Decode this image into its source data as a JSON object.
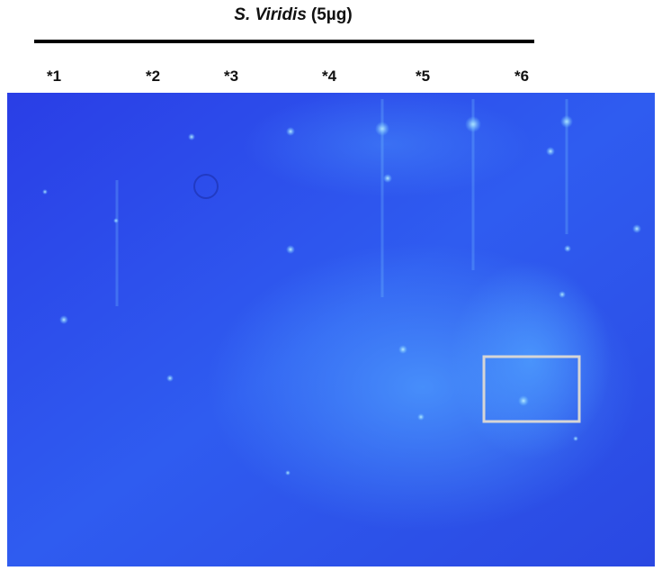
{
  "title": {
    "species": "S. Viridis",
    "amount": "(5µg)"
  },
  "lanes": [
    "*1",
    "*2",
    "*3",
    "*4",
    "*5",
    "*6"
  ]
}
